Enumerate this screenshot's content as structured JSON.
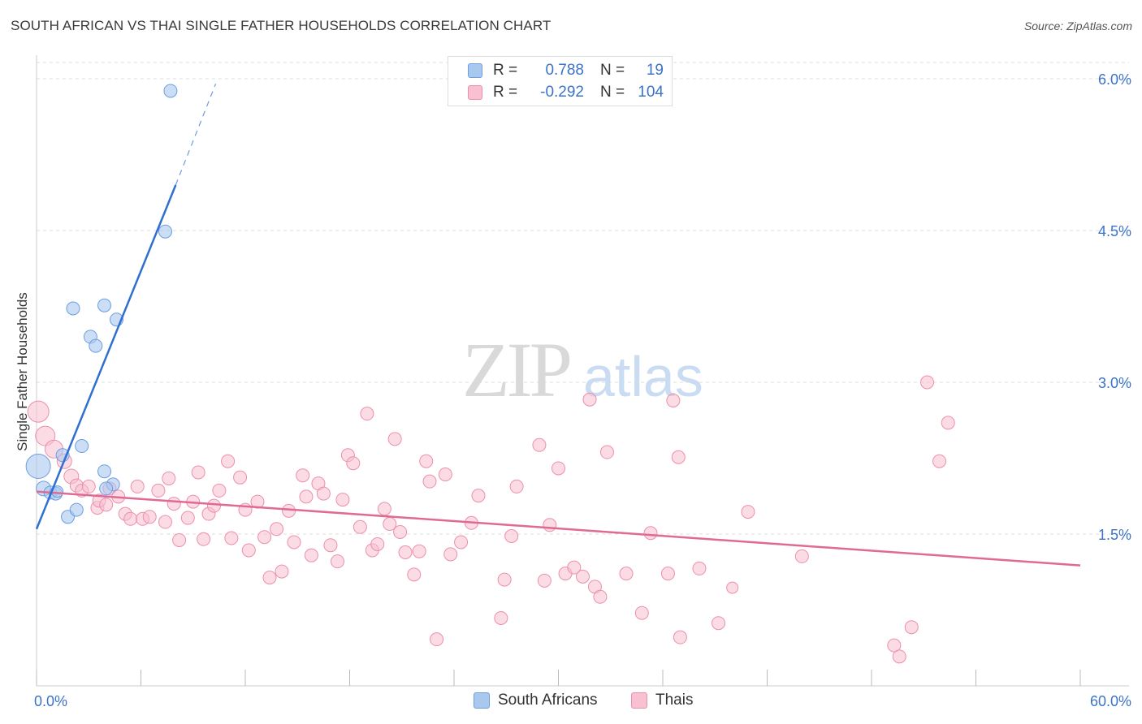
{
  "header": {
    "title": "SOUTH AFRICAN VS THAI SINGLE FATHER HOUSEHOLDS CORRELATION CHART",
    "source": "Source: ZipAtlas.com"
  },
  "watermark": {
    "zip": "ZIP",
    "atlas": "atlas"
  },
  "legend": {
    "rows": [
      {
        "r_label": "R =",
        "r_value": "0.788",
        "n_label": "N =",
        "n_value": "19",
        "color": "#a9c8f0",
        "stroke": "#6d9ee0"
      },
      {
        "r_label": "R =",
        "r_value": "-0.292",
        "n_label": "N =",
        "n_value": "104",
        "color": "#f8c0d0",
        "stroke": "#ec8fab"
      }
    ]
  },
  "bottom_legend": {
    "south_africans": "South Africans",
    "thais": "Thais"
  },
  "colors": {
    "blue_fill": "#a9c8f0",
    "blue_stroke": "#6d9ee0",
    "blue_line": "#2f6fd0",
    "pink_fill": "#f8c0d0",
    "pink_stroke": "#ec8fab",
    "pink_line": "#e06a93",
    "tick_label": "#3b73c8",
    "grid": "#dddddd"
  },
  "chart_data": {
    "type": "scatter",
    "title": "SOUTH AFRICAN VS THAI SINGLE FATHER HOUSEHOLDS CORRELATION CHART",
    "xlabel": "",
    "ylabel": "Single Father Households",
    "xlim": [
      0,
      60
    ],
    "ylim": [
      0,
      6.2
    ],
    "x_tick_labels": [
      {
        "value": 0,
        "label": "0.0%"
      },
      {
        "value": 60,
        "label": "60.0%"
      }
    ],
    "y_tick_labels": [
      {
        "value": 1.5,
        "label": "1.5%"
      },
      {
        "value": 3.0,
        "label": "3.0%"
      },
      {
        "value": 4.5,
        "label": "4.5%"
      },
      {
        "value": 6.0,
        "label": "6.0%"
      }
    ],
    "grid": "horizontal dashed",
    "legend_position": "top-center",
    "series": [
      {
        "name": "South Africans",
        "r": 0.788,
        "n": 19,
        "trend": {
          "x": [
            0,
            8.0
          ],
          "y": [
            1.55,
            4.95
          ],
          "dashed_to": [
            10.3,
            5.95
          ]
        },
        "points": [
          [
            0.1,
            2.17,
            15
          ],
          [
            0.4,
            1.95,
            9
          ],
          [
            0.8,
            1.91,
            8
          ],
          [
            1.1,
            1.9,
            8
          ],
          [
            1.8,
            1.67,
            8
          ],
          [
            2.3,
            1.74,
            8
          ],
          [
            1.5,
            2.28,
            8
          ],
          [
            2.6,
            2.37,
            8
          ],
          [
            3.9,
            2.12,
            8
          ],
          [
            4.4,
            1.99,
            8
          ],
          [
            4.0,
            1.95,
            8
          ],
          [
            3.1,
            3.45,
            8
          ],
          [
            3.4,
            3.36,
            8
          ],
          [
            2.1,
            3.73,
            8
          ],
          [
            3.9,
            3.76,
            8
          ],
          [
            4.6,
            3.62,
            8
          ],
          [
            7.4,
            4.49,
            8
          ],
          [
            7.7,
            5.88,
            8
          ],
          [
            1.2,
            1.92,
            7
          ]
        ]
      },
      {
        "name": "Thais",
        "r": -0.292,
        "n": 104,
        "trend": {
          "x": [
            0,
            60
          ],
          "y": [
            1.92,
            1.19
          ]
        },
        "points": [
          [
            0.1,
            2.71,
            13
          ],
          [
            0.5,
            2.47,
            12
          ],
          [
            1.0,
            2.34,
            11
          ],
          [
            1.6,
            2.22,
            9
          ],
          [
            2.0,
            2.07,
            9
          ],
          [
            2.3,
            1.98,
            8
          ],
          [
            2.6,
            1.93,
            8
          ],
          [
            3.0,
            1.97,
            8
          ],
          [
            3.5,
            1.76,
            8
          ],
          [
            3.6,
            1.83,
            8
          ],
          [
            4.0,
            1.79,
            8
          ],
          [
            4.2,
            1.95,
            8
          ],
          [
            4.7,
            1.87,
            8
          ],
          [
            5.1,
            1.7,
            8
          ],
          [
            5.4,
            1.65,
            8
          ],
          [
            5.8,
            1.97,
            8
          ],
          [
            6.1,
            1.65,
            8
          ],
          [
            6.5,
            1.67,
            8
          ],
          [
            7.0,
            1.93,
            8
          ],
          [
            7.4,
            1.62,
            8
          ],
          [
            7.6,
            2.05,
            8
          ],
          [
            7.9,
            1.8,
            8
          ],
          [
            8.2,
            1.44,
            8
          ],
          [
            8.7,
            1.66,
            8
          ],
          [
            9.0,
            1.82,
            8
          ],
          [
            9.3,
            2.11,
            8
          ],
          [
            9.6,
            1.45,
            8
          ],
          [
            9.9,
            1.7,
            8
          ],
          [
            10.2,
            1.78,
            8
          ],
          [
            10.5,
            1.93,
            8
          ],
          [
            11.0,
            2.22,
            8
          ],
          [
            11.2,
            1.46,
            8
          ],
          [
            11.7,
            2.06,
            8
          ],
          [
            12.0,
            1.74,
            8
          ],
          [
            12.2,
            1.34,
            8
          ],
          [
            12.7,
            1.82,
            8
          ],
          [
            13.1,
            1.47,
            8
          ],
          [
            13.4,
            1.07,
            8
          ],
          [
            13.8,
            1.55,
            8
          ],
          [
            14.1,
            1.13,
            8
          ],
          [
            14.5,
            1.73,
            8
          ],
          [
            14.8,
            1.42,
            8
          ],
          [
            15.3,
            2.08,
            8
          ],
          [
            15.5,
            1.87,
            8
          ],
          [
            15.8,
            1.29,
            8
          ],
          [
            16.2,
            2.0,
            8
          ],
          [
            16.5,
            1.9,
            8
          ],
          [
            16.9,
            1.39,
            8
          ],
          [
            17.3,
            1.23,
            8
          ],
          [
            17.6,
            1.84,
            8
          ],
          [
            17.9,
            2.28,
            8
          ],
          [
            18.2,
            2.2,
            8
          ],
          [
            18.6,
            1.57,
            8
          ],
          [
            19.0,
            2.69,
            8
          ],
          [
            19.3,
            1.34,
            8
          ],
          [
            19.6,
            1.4,
            8
          ],
          [
            20.0,
            1.75,
            8
          ],
          [
            20.3,
            1.6,
            8
          ],
          [
            20.6,
            2.44,
            8
          ],
          [
            20.9,
            1.52,
            8
          ],
          [
            21.2,
            1.32,
            8
          ],
          [
            21.7,
            1.1,
            8
          ],
          [
            22.0,
            1.33,
            8
          ],
          [
            22.4,
            2.22,
            8
          ],
          [
            22.6,
            2.02,
            8
          ],
          [
            23.0,
            0.46,
            8
          ],
          [
            23.5,
            2.09,
            8
          ],
          [
            23.8,
            1.3,
            8
          ],
          [
            24.4,
            1.42,
            8
          ],
          [
            25.0,
            1.61,
            8
          ],
          [
            25.4,
            1.88,
            8
          ],
          [
            26.7,
            0.67,
            8
          ],
          [
            26.9,
            1.05,
            8
          ],
          [
            27.3,
            1.48,
            8
          ],
          [
            27.6,
            1.97,
            8
          ],
          [
            28.9,
            2.38,
            8
          ],
          [
            29.2,
            1.04,
            8
          ],
          [
            29.5,
            1.59,
            8
          ],
          [
            30.0,
            2.15,
            8
          ],
          [
            30.4,
            1.11,
            8
          ],
          [
            30.9,
            1.17,
            8
          ],
          [
            31.4,
            1.08,
            8
          ],
          [
            31.8,
            2.83,
            8
          ],
          [
            32.1,
            0.98,
            8
          ],
          [
            32.4,
            0.88,
            8
          ],
          [
            32.8,
            2.31,
            8
          ],
          [
            33.9,
            1.11,
            8
          ],
          [
            34.8,
            0.72,
            8
          ],
          [
            35.3,
            1.51,
            8
          ],
          [
            36.3,
            1.11,
            8
          ],
          [
            36.6,
            2.82,
            8
          ],
          [
            36.9,
            2.26,
            8
          ],
          [
            37.0,
            0.48,
            8
          ],
          [
            38.1,
            1.16,
            8
          ],
          [
            39.2,
            0.62,
            8
          ],
          [
            40.9,
            1.72,
            8
          ],
          [
            51.2,
            3.0,
            8
          ],
          [
            52.4,
            2.6,
            8
          ],
          [
            51.9,
            2.22,
            8
          ],
          [
            44.0,
            1.28,
            8
          ],
          [
            49.3,
            0.4,
            8
          ],
          [
            49.6,
            0.29,
            8
          ],
          [
            50.3,
            0.58,
            8
          ],
          [
            40.0,
            0.97,
            7
          ]
        ]
      }
    ]
  }
}
